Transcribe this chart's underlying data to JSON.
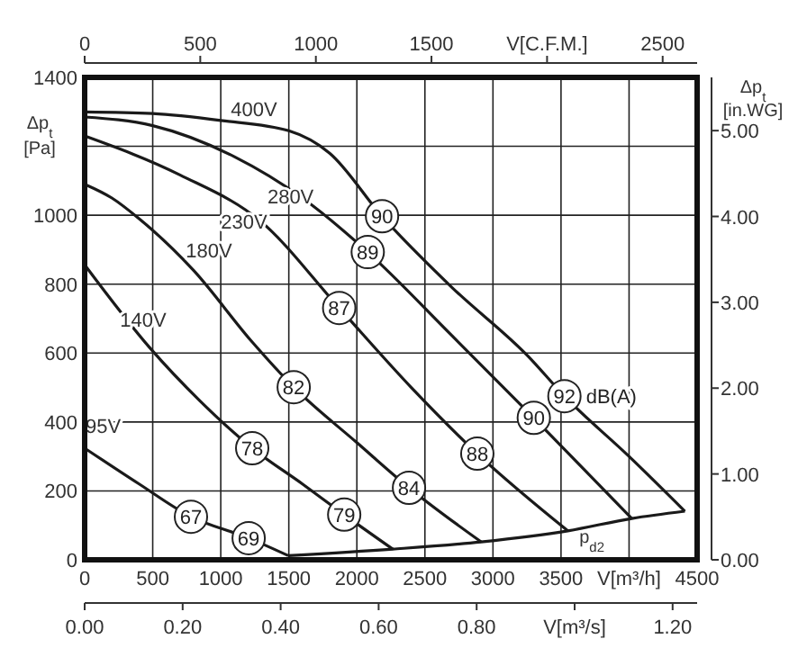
{
  "chart_data": {
    "type": "line",
    "xlabel": "V[m³/h]",
    "ylabel": "Δp$_{t}$ [Pa]",
    "y2label": "Δp$_{t}$ [in.WG]",
    "x2label": "V[C.F.M.]",
    "xlim": [
      0,
      4500
    ],
    "xticks": [
      0,
      500,
      1000,
      1500,
      2000,
      2500,
      3000,
      3500,
      {
        "value": 4000,
        "label": null
      },
      4500
    ],
    "ylim": [
      0,
      1400
    ],
    "yticks": [
      0,
      200,
      400,
      600,
      800,
      1000,
      {
        "value": 1200,
        "label": null
      },
      1400
    ],
    "y2lim": [
      0,
      5.62
    ],
    "y2ticks": [
      {
        "value": 0,
        "label": "0.00"
      },
      {
        "value": 1,
        "label": "1.00"
      },
      {
        "value": 2,
        "label": "2.00"
      },
      {
        "value": 3,
        "label": "3.00"
      },
      {
        "value": 4,
        "label": "4.00"
      },
      {
        "value": 5,
        "label": "5.00"
      }
    ],
    "x2lim": [
      0,
      2649
    ],
    "x2ticks": [
      0,
      500,
      1000,
      1500,
      {
        "value": 2000,
        "label": null
      },
      2500
    ],
    "grid": true,
    "legend": false,
    "line_style": "solid",
    "marker": "none",
    "series": [
      {
        "name": "400V",
        "color": "#1a1a1a",
        "x": [
          0,
          500,
          1000,
          1500,
          1800,
          2185,
          2700,
          3260,
          3525,
          4000,
          4410
        ],
        "values": [
          1300,
          1295,
          1275,
          1245,
          1180,
          997,
          790,
          590,
          475,
          300,
          141
        ]
      },
      {
        "name": "280V",
        "color": "#1a1a1a",
        "x": [
          0,
          500,
          1100,
          1600,
          2080,
          2700,
          3300,
          4020
        ],
        "values": [
          1285,
          1260,
          1170,
          1050,
          893,
          650,
          412,
          120
        ]
      },
      {
        "name": "230V",
        "color": "#1a1a1a",
        "x": [
          0,
          700,
          1300,
          1870,
          2400,
          2885,
          3550
        ],
        "values": [
          1230,
          1117,
          980,
          731,
          500,
          308,
          84
        ]
      },
      {
        "name": "180V",
        "color": "#1a1a1a",
        "x": [
          0,
          200,
          400,
          800,
          1231,
          1536,
          2000,
          2383,
          2913
        ],
        "values": [
          1090,
          1050,
          990,
          840,
          632,
          501,
          340,
          209,
          52
        ]
      },
      {
        "name": "140V",
        "color": "#1a1a1a",
        "x": [
          0,
          477,
          850,
          1231,
          1600,
          1907,
          2264
        ],
        "values": [
          856,
          616,
          460,
          324,
          220,
          131,
          31
        ]
      },
      {
        "name": "95V",
        "color": "#1a1a1a",
        "x": [
          0,
          400,
          781,
          1205,
          1496
        ],
        "values": [
          324,
          220,
          125,
          63,
          12
        ]
      },
      {
        "name": "p$_{d2}$",
        "color": "#1a1a1a",
        "x": [
          1496,
          2264,
          2913,
          3550,
          4020,
          4410
        ],
        "values": [
          12,
          31,
          52,
          84,
          120,
          141
        ]
      }
    ],
    "annotations": [
      {
        "text": "90",
        "x": 2185,
        "y": 997
      },
      {
        "text": "89",
        "x": 2080,
        "y": 893
      },
      {
        "text": "87",
        "x": 1870,
        "y": 731
      },
      {
        "text": "82",
        "x": 1536,
        "y": 501
      },
      {
        "text": "78",
        "x": 1231,
        "y": 324
      },
      {
        "text": "67",
        "x": 781,
        "y": 125
      },
      {
        "text": "69",
        "x": 1205,
        "y": 63
      },
      {
        "text": "79",
        "x": 1907,
        "y": 131
      },
      {
        "text": "84",
        "x": 2383,
        "y": 209
      },
      {
        "text": "88",
        "x": 2885,
        "y": 308
      },
      {
        "text": "90",
        "x": 3300,
        "y": 412
      },
      {
        "text": "92",
        "x": 3525,
        "y": 475
      },
      "dB(A)",
      "0.00",
      "0.20",
      "0.40",
      "0.60",
      "0.80",
      "V[m³/s]",
      "1.20"
    ]
  }
}
